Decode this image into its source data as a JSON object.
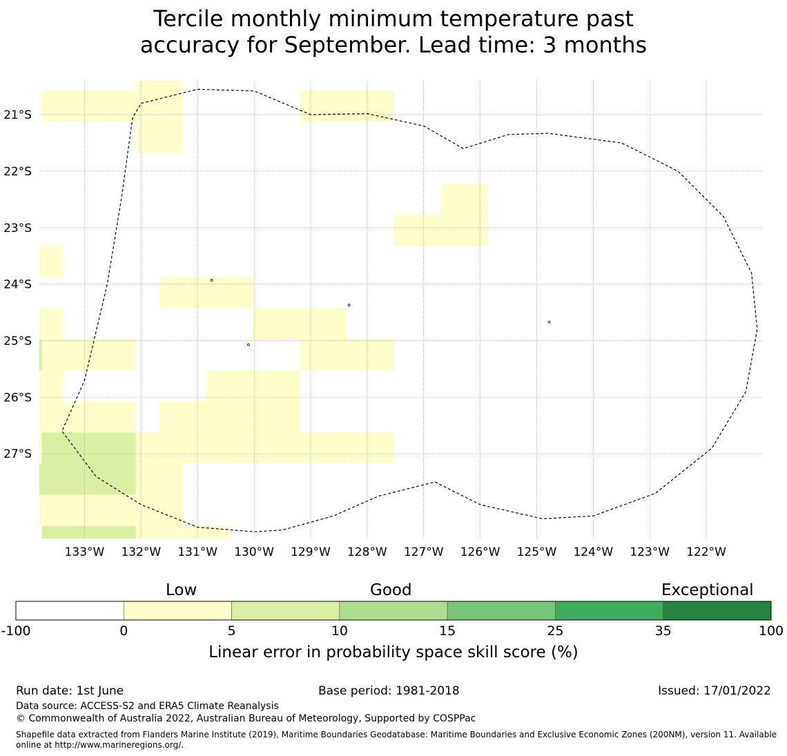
{
  "title": {
    "line1": "Tercile monthly minimum temperature past",
    "line2": "accuracy for September. Lead time: 3 months"
  },
  "map": {
    "lon_range": [
      -133.8,
      -121.0
    ],
    "lat_range": [
      -28.5,
      -20.4
    ],
    "lon_ticks": [
      -133,
      -132,
      -131,
      -130,
      -129,
      -128,
      -127,
      -126,
      -125,
      -124,
      -123,
      -122
    ],
    "lon_tick_labels": [
      "133°W",
      "132°W",
      "131°W",
      "130°W",
      "129°W",
      "128°W",
      "127°W",
      "126°W",
      "125°W",
      "124°W",
      "123°W",
      "122°W"
    ],
    "lat_ticks": [
      -21,
      -22,
      -23,
      -24,
      -25,
      -26,
      -27
    ],
    "lat_tick_labels": [
      "21°S",
      "22°S",
      "23°S",
      "24°S",
      "25°S",
      "26°S",
      "27°S"
    ],
    "grid": true,
    "cell_lon": 0.833,
    "cell_lat": 0.55,
    "cells": [
      {
        "lon": -133.34,
        "lat": -20.85,
        "bin": 1
      },
      {
        "lon": -132.51,
        "lat": -20.85,
        "bin": 1
      },
      {
        "lon": -131.68,
        "lat": -20.85,
        "bin": 1
      },
      {
        "lon": -131.68,
        "lat": -20.3,
        "bin": 1
      },
      {
        "lon": -131.68,
        "lat": -21.4,
        "bin": 1
      },
      {
        "lon": -128.77,
        "lat": -20.85,
        "bin": 1
      },
      {
        "lon": -127.94,
        "lat": -20.85,
        "bin": 1
      },
      {
        "lon": -126.28,
        "lat": -22.5,
        "bin": 1
      },
      {
        "lon": -127.11,
        "lat": -23.05,
        "bin": 1
      },
      {
        "lon": -126.28,
        "lat": -23.05,
        "bin": 1
      },
      {
        "lon": -133.8,
        "lat": -23.6,
        "bin": 1
      },
      {
        "lon": -131.26,
        "lat": -24.15,
        "bin": 1
      },
      {
        "lon": -130.43,
        "lat": -24.15,
        "bin": 1
      },
      {
        "lon": -133.8,
        "lat": -24.7,
        "bin": 1
      },
      {
        "lon": -129.6,
        "lat": -24.7,
        "bin": 1
      },
      {
        "lon": -128.77,
        "lat": -24.7,
        "bin": 1
      },
      {
        "lon": -133.8,
        "lat": -25.25,
        "bin": 2
      },
      {
        "lon": -133.34,
        "lat": -25.25,
        "bin": 1
      },
      {
        "lon": -132.51,
        "lat": -25.25,
        "bin": 1
      },
      {
        "lon": -128.77,
        "lat": -25.25,
        "bin": 1
      },
      {
        "lon": -127.94,
        "lat": -25.25,
        "bin": 1
      },
      {
        "lon": -133.8,
        "lat": -25.8,
        "bin": 1
      },
      {
        "lon": -130.43,
        "lat": -25.8,
        "bin": 1
      },
      {
        "lon": -129.6,
        "lat": -25.8,
        "bin": 1
      },
      {
        "lon": -133.8,
        "lat": -26.35,
        "bin": 1
      },
      {
        "lon": -133.34,
        "lat": -26.35,
        "bin": 1
      },
      {
        "lon": -132.51,
        "lat": -26.35,
        "bin": 1
      },
      {
        "lon": -131.26,
        "lat": -26.35,
        "bin": 1
      },
      {
        "lon": -130.43,
        "lat": -26.35,
        "bin": 1
      },
      {
        "lon": -129.6,
        "lat": -26.35,
        "bin": 1
      },
      {
        "lon": -133.8,
        "lat": -26.9,
        "bin": 1
      },
      {
        "lon": -133.34,
        "lat": -26.9,
        "bin": 2
      },
      {
        "lon": -132.51,
        "lat": -26.9,
        "bin": 2
      },
      {
        "lon": -131.68,
        "lat": -26.9,
        "bin": 1
      },
      {
        "lon": -130.85,
        "lat": -26.9,
        "bin": 1
      },
      {
        "lon": -130.43,
        "lat": -26.9,
        "bin": 1
      },
      {
        "lon": -129.6,
        "lat": -26.9,
        "bin": 1
      },
      {
        "lon": -128.77,
        "lat": -26.9,
        "bin": 1
      },
      {
        "lon": -127.94,
        "lat": -26.9,
        "bin": 1
      },
      {
        "lon": -133.8,
        "lat": -27.45,
        "bin": 2
      },
      {
        "lon": -133.34,
        "lat": -27.45,
        "bin": 2
      },
      {
        "lon": -132.51,
        "lat": -27.45,
        "bin": 2
      },
      {
        "lon": -131.68,
        "lat": -27.45,
        "bin": 1
      },
      {
        "lon": -133.8,
        "lat": -28.0,
        "bin": 1
      },
      {
        "lon": -133.34,
        "lat": -28.0,
        "bin": 1
      },
      {
        "lon": -132.51,
        "lat": -28.0,
        "bin": 1
      },
      {
        "lon": -131.68,
        "lat": -28.0,
        "bin": 1
      },
      {
        "lon": -133.34,
        "lat": -28.55,
        "bin": 2
      },
      {
        "lon": -132.51,
        "lat": -28.55,
        "bin": 2
      },
      {
        "lon": -131.68,
        "lat": -28.55,
        "bin": 1
      },
      {
        "lon": -130.85,
        "lat": -28.55,
        "bin": 1
      }
    ],
    "eez_boundary": [
      [
        -132.0,
        -20.8
      ],
      [
        -131.0,
        -20.55
      ],
      [
        -130.0,
        -20.58
      ],
      [
        -129.0,
        -21.0
      ],
      [
        -128.0,
        -20.98
      ],
      [
        -127.0,
        -21.2
      ],
      [
        -126.3,
        -21.6
      ],
      [
        -125.5,
        -21.35
      ],
      [
        -124.8,
        -21.33
      ],
      [
        -123.5,
        -21.5
      ],
      [
        -122.5,
        -22.0
      ],
      [
        -121.7,
        -22.8
      ],
      [
        -121.2,
        -23.8
      ],
      [
        -121.1,
        -24.8
      ],
      [
        -121.3,
        -25.9
      ],
      [
        -121.9,
        -26.9
      ],
      [
        -122.9,
        -27.7
      ],
      [
        -124.0,
        -28.1
      ],
      [
        -124.9,
        -28.15
      ],
      [
        -126.0,
        -27.9
      ],
      [
        -126.8,
        -27.5
      ],
      [
        -127.8,
        -27.75
      ],
      [
        -128.6,
        -28.1
      ],
      [
        -129.5,
        -28.35
      ],
      [
        -130.0,
        -28.38
      ],
      [
        -131.0,
        -28.3
      ],
      [
        -132.0,
        -27.9
      ],
      [
        -132.8,
        -27.4
      ],
      [
        -133.4,
        -26.6
      ],
      [
        -133.0,
        -25.7
      ],
      [
        -132.6,
        -24.0
      ],
      [
        -132.35,
        -22.5
      ],
      [
        -132.15,
        -21.05
      ],
      [
        -132.0,
        -20.8
      ]
    ],
    "boundary_style": "dashed",
    "islands": [
      {
        "lon": -130.75,
        "lat": -23.93
      },
      {
        "lon": -128.32,
        "lat": -24.37
      },
      {
        "lon": -124.78,
        "lat": -24.67
      },
      {
        "lon": -130.1,
        "lat": -25.07
      }
    ]
  },
  "colorbar": {
    "bins": [
      -100,
      0,
      5,
      10,
      15,
      25,
      35,
      100
    ],
    "tick_labels": [
      "-100",
      "0",
      "5",
      "10",
      "15",
      "25",
      "35",
      "100"
    ],
    "colors": [
      "#ffffff",
      "#ffffcc",
      "#d9f0a3",
      "#addd8e",
      "#78c679",
      "#41ab5d",
      "#238443"
    ],
    "category_labels": {
      "low": "Low",
      "good": "Good",
      "exceptional": "Exceptional"
    },
    "axis_label": "Linear error in probability space skill score (%)"
  },
  "footer": {
    "run_date": "Run date: 1st June",
    "base_period": "Base period: 1981-2018",
    "issued": "Issued: 17/01/2022",
    "data_source": "Data source: ACCESS-S2 and ERA5 Climate Reanalysis",
    "copyright": "© Commonwealth of Australia 2022, Australian Bureau of Meteorology, Supported by COSPPac",
    "shapefile": "Shapefile data extracted from Flanders Marine Institute (2019), Maritime Boundaries Geodatabase: Maritime Boundaries and Exclusive Economic Zones (200NM), version 11. Available online at http://www.marineregions.org/."
  }
}
